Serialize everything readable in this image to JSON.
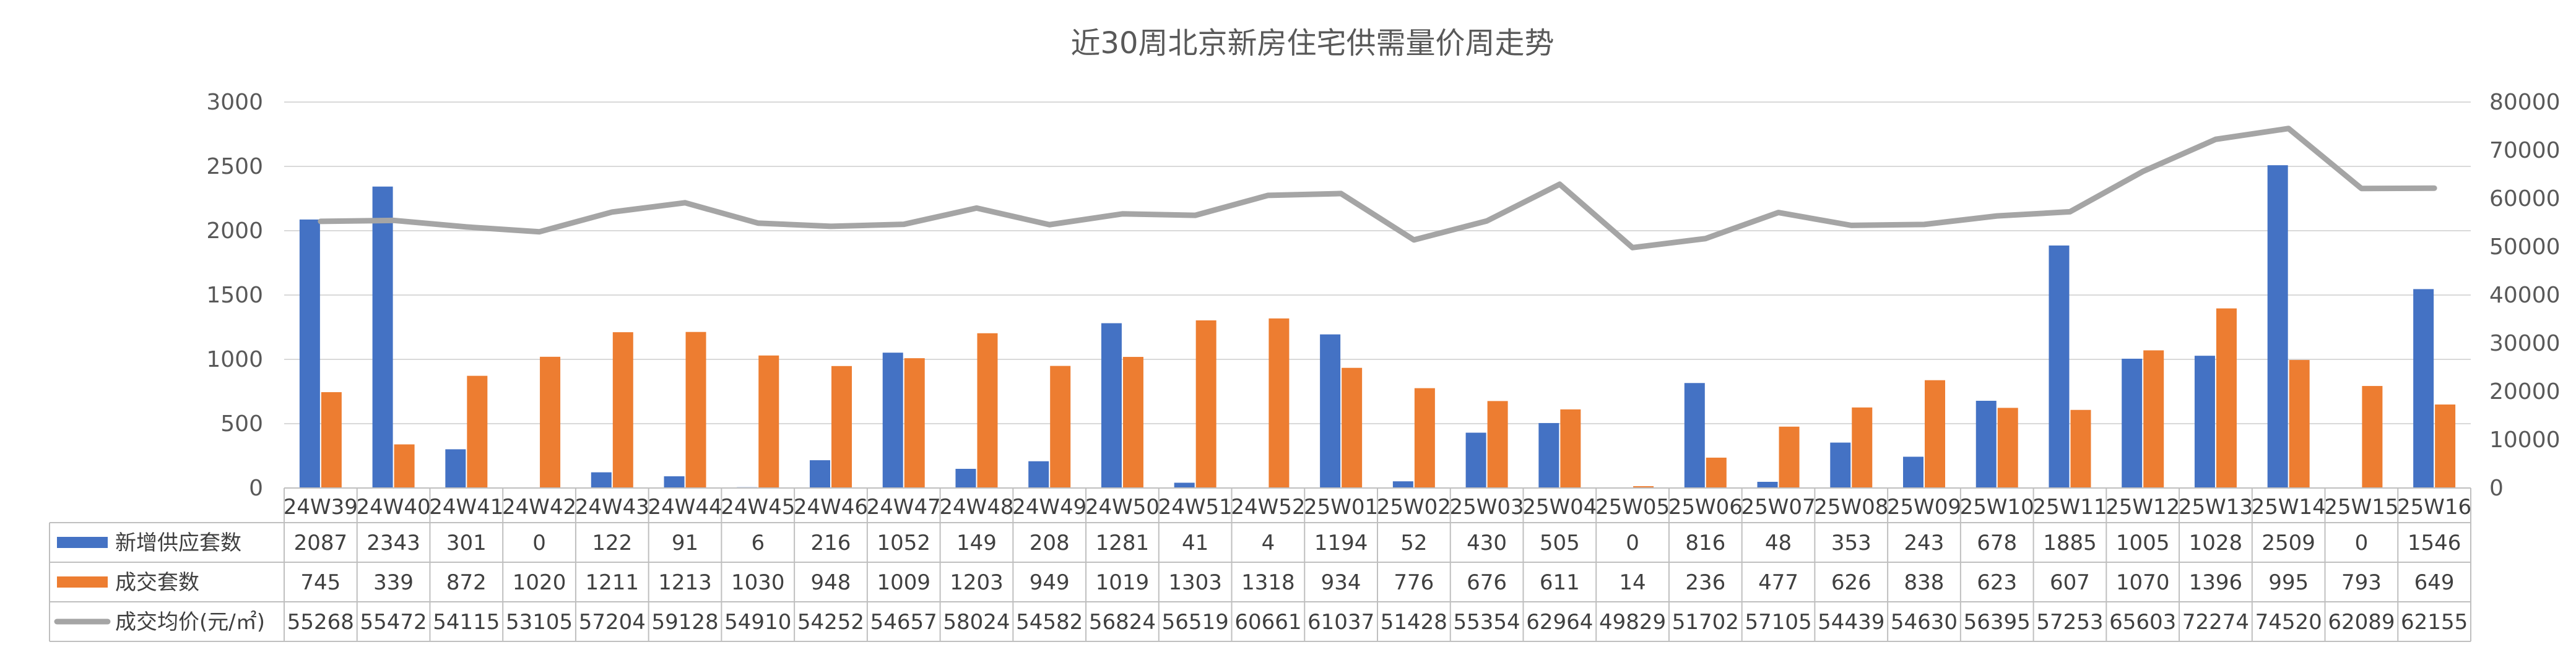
{
  "chart_data": {
    "type": "bar",
    "title": "近30周北京新房住宅供需量价周走势",
    "categories": [
      "24W39",
      "24W40",
      "24W41",
      "24W42",
      "24W43",
      "24W44",
      "24W45",
      "24W46",
      "24W47",
      "24W48",
      "24W49",
      "24W50",
      "24W51",
      "24W52",
      "25W01",
      "25W02",
      "25W03",
      "25W04",
      "25W05",
      "25W06",
      "25W07",
      "25W08",
      "25W09",
      "25W10",
      "25W11",
      "25W12",
      "25W13",
      "25W14",
      "25W15",
      "25W16"
    ],
    "y_left": {
      "min": 0,
      "max": 3000,
      "ticks": [
        0,
        500,
        1000,
        1500,
        2000,
        2500,
        3000
      ]
    },
    "y_right": {
      "min": 0,
      "max": 80000,
      "ticks": [
        0,
        10000,
        20000,
        30000,
        40000,
        50000,
        60000,
        70000,
        80000
      ]
    },
    "grid": true,
    "legend_placement": "data-table",
    "series": [
      {
        "name": "新增供应套数",
        "type": "bar",
        "axis": "left",
        "color": "#4472C4",
        "values": [
          2087,
          2343,
          301,
          0,
          122,
          91,
          6,
          216,
          1052,
          149,
          208,
          1281,
          41,
          4,
          1194,
          52,
          430,
          505,
          0,
          816,
          48,
          353,
          243,
          678,
          1885,
          1005,
          1028,
          2509,
          0,
          1546
        ]
      },
      {
        "name": "成交套数",
        "type": "bar",
        "axis": "left",
        "color": "#ED7D31",
        "values": [
          745,
          339,
          872,
          1020,
          1211,
          1213,
          1030,
          948,
          1009,
          1203,
          949,
          1019,
          1303,
          1318,
          934,
          776,
          676,
          611,
          14,
          236,
          477,
          626,
          838,
          623,
          607,
          1070,
          1396,
          995,
          793,
          649
        ]
      },
      {
        "name": "成交均价(元/㎡)",
        "type": "line",
        "axis": "right",
        "color": "#A5A5A5",
        "values": [
          55268,
          55472,
          54115,
          53105,
          57204,
          59128,
          54910,
          54252,
          54657,
          58024,
          54582,
          56824,
          56519,
          60661,
          61037,
          51428,
          55354,
          62964,
          49829,
          51702,
          57105,
          54439,
          54630,
          56395,
          57253,
          65603,
          72274,
          74520,
          62089,
          62155
        ]
      }
    ]
  }
}
